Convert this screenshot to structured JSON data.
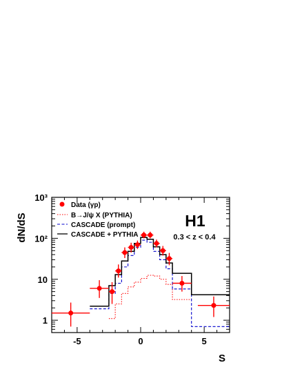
{
  "chart_data": {
    "type": "line",
    "xlabel": "S",
    "ylabel": "dN/dS",
    "xlim": [
      -7,
      7
    ],
    "ylim": [
      0.5,
      1000
    ],
    "yscale": "log",
    "xticks": [
      "-5",
      "0",
      "5"
    ],
    "xtick_values": [
      -5,
      0,
      5
    ],
    "yticks": [
      "1",
      "10",
      "10²",
      "10³"
    ],
    "ytick_values": [
      1,
      10,
      100,
      1000
    ],
    "experiment_label": "H1",
    "cut_label": "0.3 < z < 0.4",
    "legend_position": "top-left",
    "series": [
      {
        "name": "Data (γp)",
        "kind": "points",
        "color": "#ff0000",
        "x": [
          -5.5,
          -3.25,
          -2.25,
          -1.75,
          -1.25,
          -0.75,
          -0.25,
          0.25,
          0.75,
          1.25,
          1.75,
          2.25,
          3.25,
          5.75
        ],
        "xerr": [
          1.5,
          0.75,
          0.25,
          0.25,
          0.25,
          0.25,
          0.25,
          0.25,
          0.25,
          0.25,
          0.25,
          0.25,
          0.75,
          1.25
        ],
        "y": [
          1.5,
          6,
          5,
          16,
          45,
          60,
          70,
          120,
          120,
          75,
          50,
          32,
          8,
          2.3
        ],
        "yerr_low": [
          0.8,
          2.5,
          2.5,
          5,
          12,
          15,
          15,
          20,
          20,
          15,
          12,
          10,
          3,
          1.1
        ],
        "yerr_high": [
          1.2,
          3.5,
          3.5,
          7,
          15,
          18,
          18,
          25,
          25,
          18,
          15,
          12,
          4,
          1.5
        ]
      },
      {
        "name": "B→J/ψ X (PYTHIA)",
        "kind": "histogram",
        "color": "#ff0000",
        "dash": "1.5,2",
        "edges": [
          -2.5,
          -2.0,
          -1.5,
          -1.0,
          -0.5,
          0.0,
          0.5,
          1.0,
          1.5,
          2.0,
          2.5,
          4.0
        ],
        "values": [
          1.1,
          2.5,
          4.5,
          6.5,
          8.5,
          10.5,
          12.5,
          12,
          10,
          7.5,
          3.2
        ]
      },
      {
        "name": "CASCADE (prompt)",
        "kind": "histogram",
        "color": "#0000cc",
        "dash": "4,2.5",
        "edges": [
          -4.0,
          -2.5,
          -2.0,
          -1.5,
          -1.0,
          -0.5,
          0.0,
          0.5,
          1.0,
          1.5,
          2.0,
          2.5,
          4.0,
          7.0
        ],
        "values": [
          1.9,
          4.5,
          8,
          20,
          38,
          60,
          90,
          80,
          48,
          30,
          18,
          5.8,
          0.7
        ]
      },
      {
        "name": "CASCADE + PYTHIA",
        "kind": "histogram",
        "color": "#000000",
        "dash": "",
        "edges": [
          -4.0,
          -2.5,
          -2.0,
          -1.5,
          -1.0,
          -0.5,
          0.0,
          0.5,
          1.0,
          1.5,
          2.0,
          2.5,
          4.0,
          7.0
        ],
        "values": [
          2.2,
          7,
          13,
          28,
          48,
          75,
          105,
          95,
          62,
          40,
          25,
          14,
          4.2
        ]
      }
    ]
  }
}
